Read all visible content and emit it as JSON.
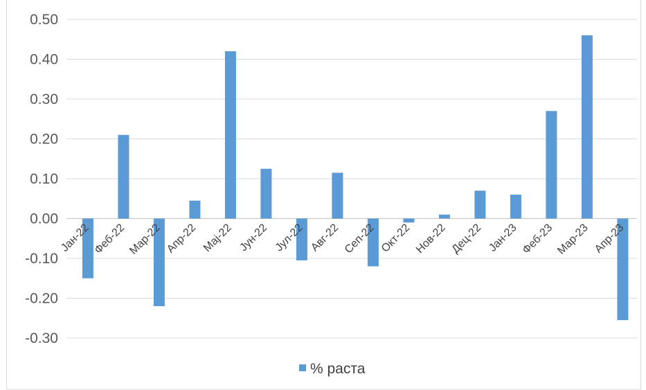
{
  "chart_data": {
    "type": "bar",
    "categories": [
      "Јан-22",
      "Феб-22",
      "Мар-22",
      "Апр-22",
      "Мај-22",
      "Јун-22",
      "Јул-22",
      "Авг-22",
      "Сеп-22",
      "Окт-22",
      "Нов-22",
      "Дец-22",
      "Јан-23",
      "Феб-23",
      "Мар-23",
      "Апр-23"
    ],
    "series": [
      {
        "name": "% раста",
        "color": "#5b9bd5",
        "values": [
          -0.15,
          0.21,
          -0.22,
          0.045,
          0.42,
          0.125,
          -0.105,
          0.115,
          -0.12,
          -0.01,
          0.01,
          0.07,
          0.06,
          0.27,
          0.46,
          -0.255
        ]
      }
    ],
    "y_ticks": [
      "0.50",
      "0.40",
      "0.30",
      "0.20",
      "0.10",
      "0.00",
      "-0.10",
      "-0.20",
      "-0.30"
    ],
    "ylim": [
      -0.3,
      0.5
    ],
    "grid": true,
    "legend_position": "bottom",
    "title": "",
    "xlabel": "",
    "ylabel": ""
  }
}
